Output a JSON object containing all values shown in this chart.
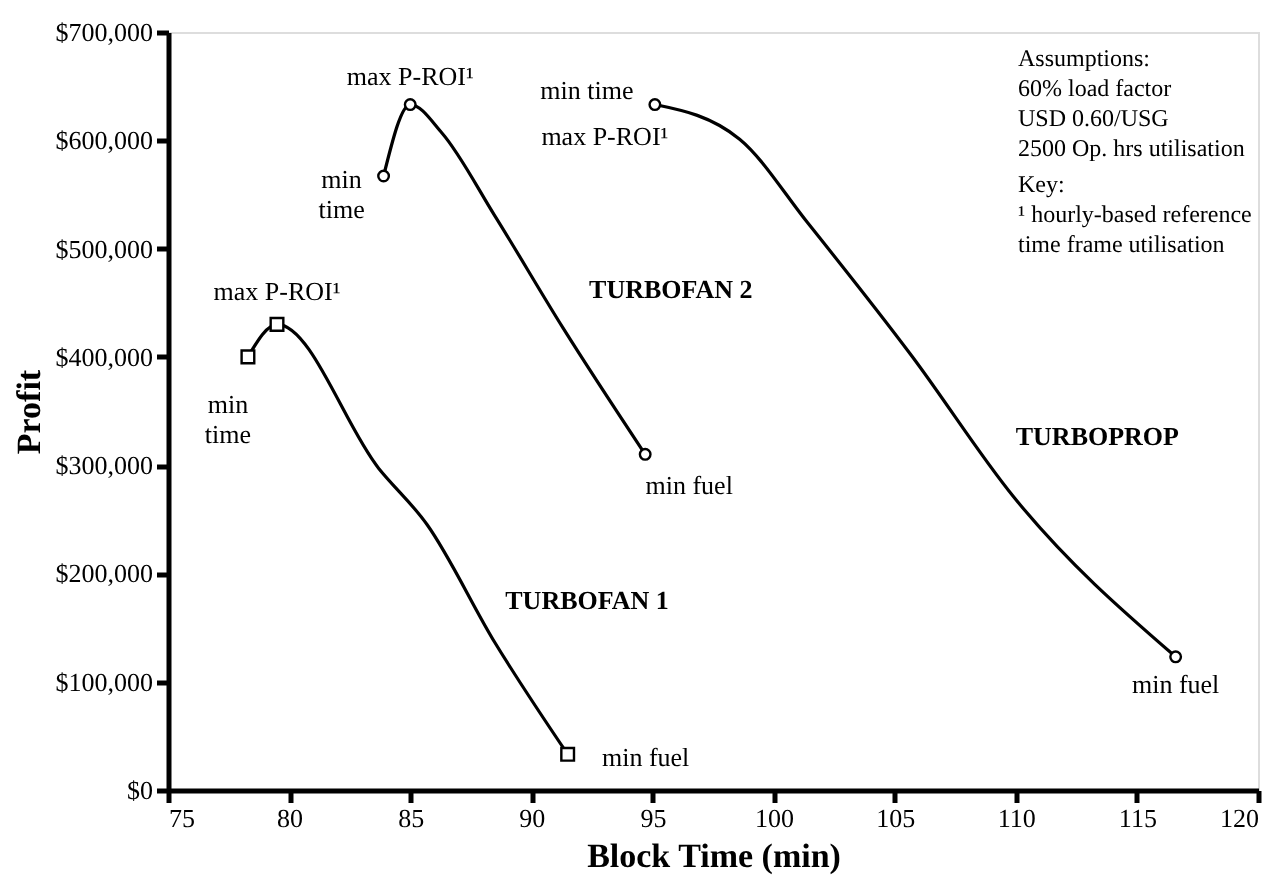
{
  "chart_data": {
    "type": "line",
    "xlabel": "Block Time (min)",
    "ylabel": "Profit",
    "xlim": [
      75,
      120
    ],
    "xticks": [
      75,
      80,
      85,
      90,
      95,
      100,
      105,
      110,
      115,
      120
    ],
    "ylim": [
      0,
      700000
    ],
    "yticks": [
      {
        "value": 0,
        "label": "$0"
      },
      {
        "value": 100000,
        "label": "$100,000"
      },
      {
        "value": 200000,
        "label": "$200,000"
      },
      {
        "value": 300000,
        "label": "$300,000"
      },
      {
        "value": 400000,
        "label": "$400,000"
      },
      {
        "value": 500000,
        "label": "$500,000"
      },
      {
        "value": 600000,
        "label": "$600,000"
      },
      {
        "value": 700000,
        "label": "$700,000"
      }
    ],
    "grid": false,
    "line_style": "solid",
    "series": [
      {
        "type": "line",
        "color": "#000000",
        "marker": "none",
        "x": [
          78.3,
          79.5,
          83.7,
          85.7,
          88.5,
          91.5
        ],
        "values": [
          400000,
          430000,
          297000,
          245000,
          136000,
          33000
        ]
      },
      {
        "type": "scatter",
        "color": "#000000",
        "marker": "square",
        "x": [
          78.3,
          79.5,
          91.5
        ],
        "values": [
          400000,
          430000,
          33000
        ]
      },
      {
        "type": "line",
        "color": "#000000",
        "marker": "none",
        "x": [
          83.9,
          85.0,
          86.3,
          88.5,
          91.3,
          94.7
        ],
        "values": [
          567000,
          633000,
          607000,
          530000,
          427000,
          310000
        ]
      },
      {
        "type": "scatter",
        "color": "#000000",
        "marker": "circle",
        "x": [
          83.9,
          85.0,
          94.7
        ],
        "values": [
          567000,
          633000,
          310000
        ]
      },
      {
        "type": "line",
        "color": "#000000",
        "marker": "none",
        "x": [
          95.1,
          98.6,
          101.4,
          105.7,
          109.9,
          116.6
        ],
        "values": [
          633000,
          601000,
          524000,
          401000,
          271000,
          123000
        ]
      },
      {
        "type": "scatter",
        "color": "#000000",
        "marker": "circle",
        "x": [
          95.1,
          116.6
        ],
        "values": [
          633000,
          123000
        ]
      }
    ],
    "annotations": [
      {
        "text": "min\ntime",
        "x": 78.3,
        "y": 400000
      },
      {
        "text": "max P-ROI¹",
        "x": 79.5,
        "y": 430000
      },
      {
        "text": "min fuel",
        "x": 91.5,
        "y": 33000
      },
      {
        "text": "TURBOFAN 1",
        "x": 88.5,
        "y": 136000
      },
      {
        "text": "min\ntime",
        "x": 83.9,
        "y": 567000
      },
      {
        "text": "max P-ROI¹",
        "x": 85.0,
        "y": 633000
      },
      {
        "text": "min fuel",
        "x": 94.7,
        "y": 310000
      },
      {
        "text": "TURBOFAN 2",
        "x": 91.3,
        "y": 427000
      },
      {
        "text": "min time",
        "x": 95.1,
        "y": 633000
      },
      {
        "text": "max P-ROI¹",
        "x": 95.1,
        "y": 633000
      },
      {
        "text": "TURBOPROP",
        "x": 109.9,
        "y": 271000
      },
      {
        "text": "min fuel",
        "x": 116.6,
        "y": 123000
      },
      "Assumptions:",
      "60% load factor",
      "USD 0.60/USG",
      "2500 Op. hrs utilisation",
      "Key:",
      "¹ hourly-based reference\n   time frame utilisation"
    ]
  }
}
